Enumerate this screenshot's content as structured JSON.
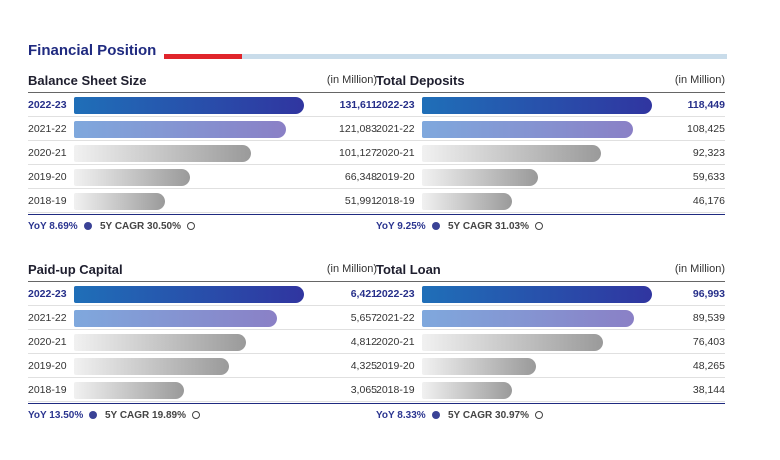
{
  "header": {
    "title": "Financial Position"
  },
  "colors": {
    "accent_red": "#e0252b",
    "rule_light": "#c9dcea",
    "current_bar": "linear-gradient(90deg,#1f6fb8 0%,#3035a0 100%)",
    "prev_bar": "linear-gradient(90deg,#7fa8dd 0%,#8a80c6 100%)",
    "older_bar": "linear-gradient(90deg,#f1f1f1 0%,#9a9a9a 100%)"
  },
  "chart_data": [
    {
      "type": "bar",
      "title": "Balance Sheet Size",
      "unit": "(in Million)",
      "categories": [
        "2022-23",
        "2021-22",
        "2020-21",
        "2019-20",
        "2018-19"
      ],
      "values": [
        131611,
        121083,
        101127,
        66348,
        51991
      ],
      "labels": [
        "131,611",
        "121,083",
        "101,127",
        "66,348",
        "51,991"
      ],
      "xlim": [
        0,
        131611
      ],
      "yoy": "YoY  8.69%",
      "cagr": "5Y CAGR  30.50%"
    },
    {
      "type": "bar",
      "title": "Total Deposits",
      "unit": "(in Million)",
      "categories": [
        "2022-23",
        "2021-22",
        "2020-21",
        "2019-20",
        "2018-19"
      ],
      "values": [
        118449,
        108425,
        92323,
        59633,
        46176
      ],
      "labels": [
        "118,449",
        "108,425",
        "92,323",
        "59,633",
        "46,176"
      ],
      "xlim": [
        0,
        118449
      ],
      "yoy": "YoY  9.25%",
      "cagr": "5Y CAGR  31.03%"
    },
    {
      "type": "bar",
      "title": "Paid-up Capital",
      "unit": "(in Million)",
      "categories": [
        "2022-23",
        "2021-22",
        "2020-21",
        "2019-20",
        "2018-19"
      ],
      "values": [
        6421,
        5657,
        4812,
        4325,
        3065
      ],
      "labels": [
        "6,421",
        "5,657",
        "4,812",
        "4,325",
        "3,065"
      ],
      "xlim": [
        0,
        6421
      ],
      "yoy": "YoY  13.50%",
      "cagr": "5Y CAGR  19.89%"
    },
    {
      "type": "bar",
      "title": "Total Loan",
      "unit": "(in Million)",
      "categories": [
        "2022-23",
        "2021-22",
        "2020-21",
        "2019-20",
        "2018-19"
      ],
      "values": [
        96993,
        89539,
        76403,
        48265,
        38144
      ],
      "labels": [
        "96,993",
        "89,539",
        "76,403",
        "48,265",
        "38,144"
      ],
      "xlim": [
        0,
        96993
      ],
      "yoy": "YoY  8.33%",
      "cagr": "5Y CAGR  30.97%"
    }
  ]
}
